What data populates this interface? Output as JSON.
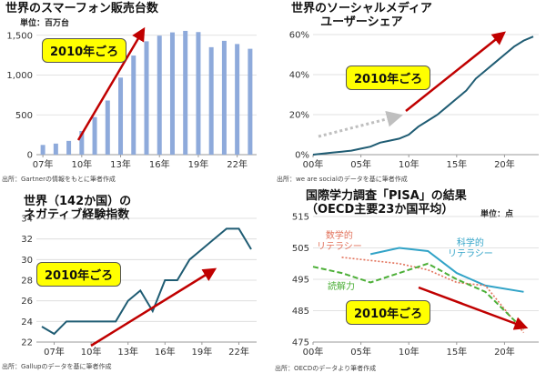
{
  "colors": {
    "bar": "#8eaadb",
    "line": "#1f5c73",
    "arrow": "#c00000",
    "badge": "#ffff00",
    "grid": "#d9d9d9",
    "science": "#31a3c7",
    "math": "#e2725b",
    "reading": "#4caf37"
  },
  "panels": [
    {
      "title": "世界のスマーフォン販売台数",
      "unit": "単位：百万台",
      "badge": "2010年ごろ",
      "source": "出所：Gartnerの情報をもとに筆者作成"
    },
    {
      "title": "世界のソーシャルメディア\nユーザーシェア",
      "badge": "2010年ごろ",
      "source": "出所：we are socialのデータを基に筆者作成"
    },
    {
      "title": "世界（142か国）の\nネガティブ経験指数",
      "badge": "2010年ごろ",
      "source": "出所：Gallupのデータを基に筆者作成"
    },
    {
      "title": "国際学力調査「PISA」の結果\n（OECD主要23か国平均）",
      "unit": "単位：点",
      "badge": "2010年ごろ",
      "source": "出所：OECDのデータより筆者作成",
      "annotations": {
        "math": "数学的\nリテラシー",
        "science": "科学的\nリテラシー",
        "reading": "読解力"
      }
    }
  ],
  "chart_data": [
    {
      "type": "bar",
      "title": "世界のスマーフォン販売台数",
      "ylabel": "単位：百万台",
      "x": [
        2007,
        2008,
        2009,
        2010,
        2011,
        2012,
        2013,
        2014,
        2015,
        2016,
        2017,
        2018,
        2019,
        2020,
        2021,
        2022,
        2023
      ],
      "values": [
        122,
        139,
        173,
        297,
        472,
        680,
        968,
        1245,
        1424,
        1495,
        1536,
        1555,
        1540,
        1350,
        1430,
        1390,
        1330
      ],
      "xticks": [
        "07年",
        "10年",
        "13年",
        "16年",
        "19年",
        "22年"
      ],
      "xtick_values": [
        2007,
        2010,
        2013,
        2016,
        2019,
        2022
      ],
      "yticks": [
        "0",
        "500",
        "1,000",
        "1,500"
      ],
      "ytick_values": [
        0,
        500,
        1000,
        1500
      ],
      "ylim": [
        0,
        1600
      ],
      "grid": true
    },
    {
      "type": "line",
      "title": "世界のソーシャルメディア ユーザーシェア",
      "x": [
        2000,
        2001,
        2002,
        2003,
        2004,
        2005,
        2006,
        2007,
        2008,
        2009,
        2010,
        2011,
        2012,
        2013,
        2014,
        2015,
        2016,
        2017,
        2018,
        2019,
        2020,
        2021,
        2022,
        2023
      ],
      "values": [
        0,
        0.5,
        1,
        1.5,
        2,
        3,
        4,
        6,
        7,
        8,
        10,
        14,
        17,
        20,
        24,
        28,
        32,
        38,
        42,
        46,
        50,
        54,
        57,
        59
      ],
      "xticks": [
        "00年",
        "05年",
        "10年",
        "15年",
        "20年"
      ],
      "xtick_values": [
        2000,
        2005,
        2010,
        2015,
        2020
      ],
      "yticks": [
        "0%",
        "20%",
        "40%",
        "60%"
      ],
      "ytick_values": [
        0,
        20,
        40,
        60
      ],
      "ylim": [
        0,
        60
      ],
      "grid": true
    },
    {
      "type": "line",
      "title": "世界（142か国）の ネガティブ経験指数",
      "x": [
        2006,
        2007,
        2008,
        2009,
        2010,
        2011,
        2012,
        2013,
        2014,
        2015,
        2016,
        2017,
        2018,
        2019,
        2020,
        2021,
        2022,
        2023
      ],
      "values": [
        23.5,
        22.8,
        24,
        24,
        24,
        24,
        24,
        26,
        27,
        25,
        28,
        28,
        30,
        31,
        32,
        33,
        33,
        31
      ],
      "xticks": [
        "07年",
        "10年",
        "13年",
        "16年",
        "19年",
        "22年"
      ],
      "xtick_values": [
        2007,
        2010,
        2013,
        2016,
        2019,
        2022
      ],
      "yticks": [
        "22",
        "24",
        "26",
        "28",
        "30",
        "32",
        "34"
      ],
      "ytick_values": [
        22,
        24,
        26,
        28,
        30,
        32,
        34
      ],
      "ylim": [
        22,
        34
      ],
      "grid": true
    },
    {
      "type": "line",
      "title": "国際学力調査「PISA」の結果（OECD主要23か国平均）",
      "ylabel": "単位：点",
      "xticks": [
        "00年",
        "05年",
        "10年",
        "15年",
        "20年"
      ],
      "xtick_values": [
        2000,
        2005,
        2010,
        2015,
        2020
      ],
      "yticks": [
        "475",
        "485",
        "495",
        "505",
        "515"
      ],
      "ytick_values": [
        475,
        485,
        495,
        505,
        515
      ],
      "ylim": [
        475,
        515
      ],
      "grid": true,
      "series": [
        {
          "name": "科学的リテラシー",
          "x": [
            2006,
            2009,
            2012,
            2015,
            2018,
            2022
          ],
          "values": [
            503,
            505,
            504,
            497,
            493,
            491
          ]
        },
        {
          "name": "数学的リテラシー",
          "x": [
            2003,
            2006,
            2009,
            2012,
            2015,
            2018,
            2022
          ],
          "values": [
            502,
            501,
            500,
            498,
            494,
            493,
            478
          ]
        },
        {
          "name": "読解力",
          "x": [
            2000,
            2003,
            2006,
            2009,
            2012,
            2015,
            2018,
            2022
          ],
          "values": [
            499,
            497,
            494,
            497,
            500,
            495,
            491,
            479
          ]
        }
      ]
    }
  ]
}
